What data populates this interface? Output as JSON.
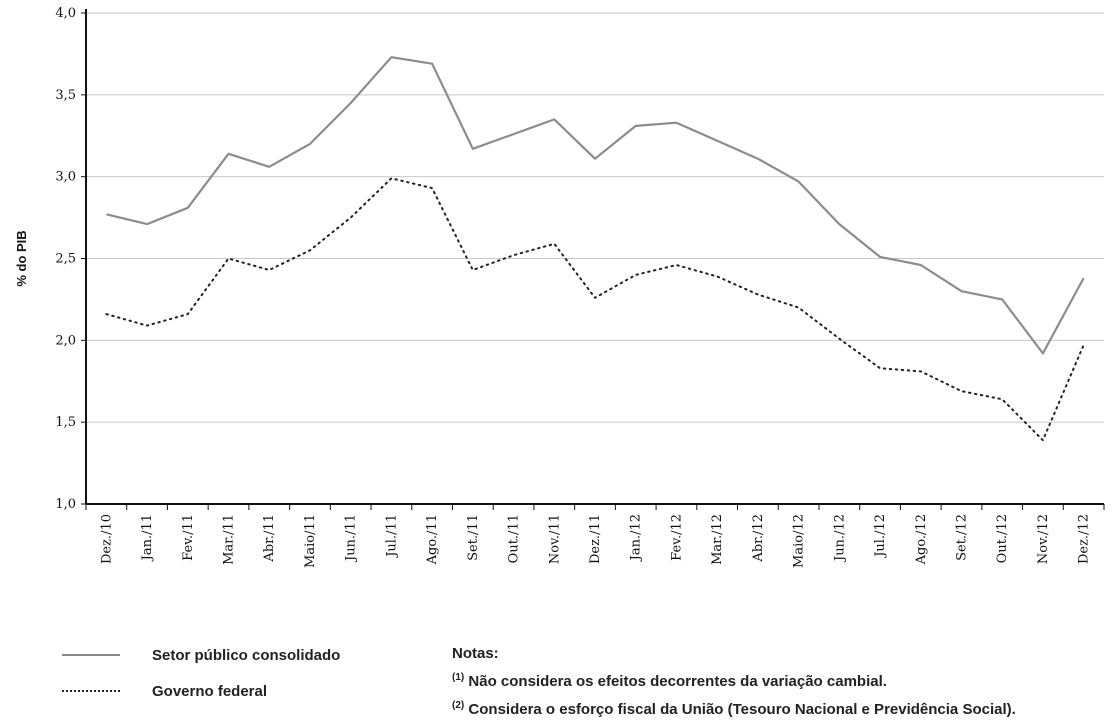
{
  "chart_data": {
    "type": "line",
    "title": "",
    "xlabel": "",
    "ylabel": "% do PIB",
    "ylim": [
      1.0,
      4.0
    ],
    "yticks": [
      "1,0",
      "1,5",
      "2,0",
      "2,5",
      "3,0",
      "3,5",
      "4,0"
    ],
    "grid": true,
    "categories": [
      "Dez./10",
      "Jan./11",
      "Fev./11",
      "Mar./11",
      "Abr./11",
      "Maio/11",
      "Jun./11",
      "Jul./11",
      "Ago./11",
      "Set./11",
      "Out./11",
      "Nov./11",
      "Dez./11",
      "Jan./12",
      "Fev./12",
      "Mar./12",
      "Abr./12",
      "Maio/12",
      "Jun./12",
      "Jul./12",
      "Ago./12",
      "Set./12",
      "Out./12",
      "Nov./12",
      "Dez./12"
    ],
    "series": [
      {
        "name": "Setor público consolidado",
        "style": "solid",
        "color": "#8c8c8c",
        "values": [
          2.77,
          2.71,
          2.81,
          3.14,
          3.06,
          3.2,
          3.45,
          3.73,
          3.69,
          3.17,
          3.26,
          3.35,
          3.11,
          3.31,
          3.33,
          3.22,
          3.11,
          2.97,
          2.71,
          2.51,
          2.46,
          2.3,
          2.25,
          1.92,
          2.38
        ]
      },
      {
        "name": "Governo federal",
        "style": "dotted",
        "color": "#222222",
        "values": [
          2.16,
          2.09,
          2.16,
          2.5,
          2.43,
          2.55,
          2.75,
          2.99,
          2.93,
          2.43,
          2.52,
          2.59,
          2.26,
          2.4,
          2.46,
          2.39,
          2.28,
          2.2,
          2.01,
          1.83,
          1.81,
          1.69,
          1.64,
          1.39,
          1.97
        ]
      }
    ]
  },
  "legend": {
    "items": [
      {
        "label": "Setor público consolidado"
      },
      {
        "label": "Governo federal"
      }
    ]
  },
  "notes": {
    "title": "Notas:",
    "note1_marker": "(1)",
    "note1": "Não considera os efeitos decorrentes da variação cambial.",
    "note2_marker": "(2)",
    "note2": "Considera o esforço fiscal da União (Tesouro Nacional e Previdência Social)."
  }
}
